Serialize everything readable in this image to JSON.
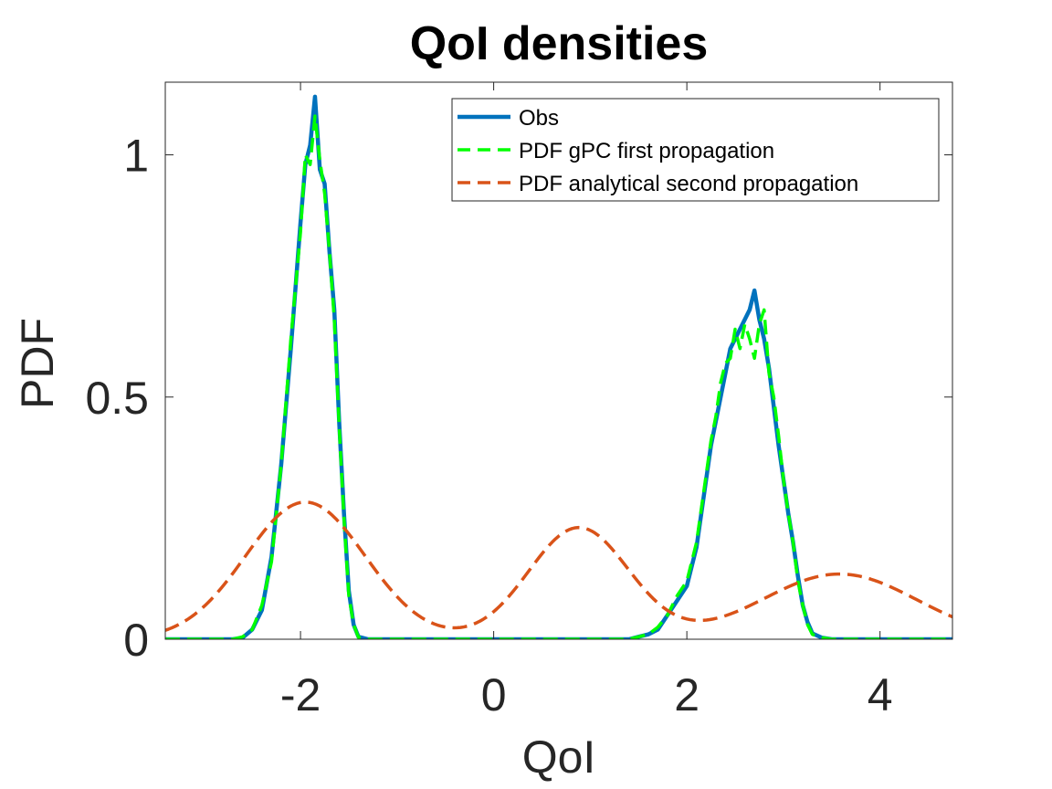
{
  "chart_data": {
    "type": "line",
    "title": "QoI densities",
    "xlabel": "QoI",
    "ylabel": "PDF",
    "xlim": [
      -3.4,
      4.75
    ],
    "ylim": [
      0,
      1.15
    ],
    "xticks": [
      -2,
      0,
      2,
      4
    ],
    "xtick_labels": [
      "-2",
      "0",
      "2",
      "4"
    ],
    "yticks": [
      0,
      0.5,
      1
    ],
    "ytick_labels": [
      "0",
      "0.5",
      "1"
    ],
    "grid": false,
    "legend_position": "top-right",
    "series": [
      {
        "name": "Obs",
        "style": "solid",
        "color": "#0072BD",
        "points": [
          [
            -3.4,
            0
          ],
          [
            -2.7,
            0
          ],
          [
            -2.6,
            0.003
          ],
          [
            -2.5,
            0.02
          ],
          [
            -2.4,
            0.06
          ],
          [
            -2.3,
            0.17
          ],
          [
            -2.2,
            0.36
          ],
          [
            -2.1,
            0.6
          ],
          [
            -2.0,
            0.86
          ],
          [
            -1.95,
            0.98
          ],
          [
            -1.9,
            1.02
          ],
          [
            -1.85,
            1.12
          ],
          [
            -1.8,
            0.97
          ],
          [
            -1.75,
            0.94
          ],
          [
            -1.7,
            0.8
          ],
          [
            -1.65,
            0.68
          ],
          [
            -1.6,
            0.45
          ],
          [
            -1.55,
            0.26
          ],
          [
            -1.5,
            0.1
          ],
          [
            -1.45,
            0.03
          ],
          [
            -1.4,
            0.005
          ],
          [
            -1.3,
            0
          ],
          [
            1.4,
            0
          ],
          [
            1.5,
            0.005
          ],
          [
            1.6,
            0.01
          ],
          [
            1.7,
            0.02
          ],
          [
            1.8,
            0.05
          ],
          [
            1.9,
            0.08
          ],
          [
            2.0,
            0.11
          ],
          [
            2.1,
            0.19
          ],
          [
            2.15,
            0.26
          ],
          [
            2.2,
            0.33
          ],
          [
            2.25,
            0.4
          ],
          [
            2.3,
            0.45
          ],
          [
            2.35,
            0.5
          ],
          [
            2.4,
            0.55
          ],
          [
            2.45,
            0.6
          ],
          [
            2.5,
            0.62
          ],
          [
            2.55,
            0.64
          ],
          [
            2.6,
            0.66
          ],
          [
            2.65,
            0.68
          ],
          [
            2.7,
            0.72
          ],
          [
            2.75,
            0.66
          ],
          [
            2.8,
            0.62
          ],
          [
            2.85,
            0.56
          ],
          [
            2.9,
            0.48
          ],
          [
            2.95,
            0.4
          ],
          [
            3.0,
            0.33
          ],
          [
            3.05,
            0.26
          ],
          [
            3.1,
            0.2
          ],
          [
            3.15,
            0.13
          ],
          [
            3.2,
            0.07
          ],
          [
            3.25,
            0.035
          ],
          [
            3.3,
            0.012
          ],
          [
            3.4,
            0.003
          ],
          [
            3.5,
            0
          ],
          [
            4.75,
            0
          ]
        ]
      },
      {
        "name": "PDF gPC first propagation",
        "style": "dashed",
        "color": "#00FF00",
        "points": [
          [
            -3.4,
            0
          ],
          [
            -2.7,
            0
          ],
          [
            -2.6,
            0.005
          ],
          [
            -2.5,
            0.02
          ],
          [
            -2.4,
            0.07
          ],
          [
            -2.3,
            0.16
          ],
          [
            -2.2,
            0.36
          ],
          [
            -2.1,
            0.62
          ],
          [
            -2.0,
            0.84
          ],
          [
            -1.95,
            1.0
          ],
          [
            -1.9,
            0.98
          ],
          [
            -1.85,
            1.08
          ],
          [
            -1.8,
            0.99
          ],
          [
            -1.75,
            0.92
          ],
          [
            -1.7,
            0.8
          ],
          [
            -1.65,
            0.66
          ],
          [
            -1.6,
            0.44
          ],
          [
            -1.55,
            0.25
          ],
          [
            -1.5,
            0.09
          ],
          [
            -1.45,
            0.03
          ],
          [
            -1.4,
            0.004
          ],
          [
            -1.3,
            0
          ],
          [
            1.4,
            0
          ],
          [
            1.5,
            0.005
          ],
          [
            1.6,
            0.01
          ],
          [
            1.7,
            0.025
          ],
          [
            1.8,
            0.05
          ],
          [
            1.9,
            0.09
          ],
          [
            2.0,
            0.12
          ],
          [
            2.1,
            0.2
          ],
          [
            2.15,
            0.27
          ],
          [
            2.2,
            0.34
          ],
          [
            2.25,
            0.41
          ],
          [
            2.3,
            0.46
          ],
          [
            2.35,
            0.53
          ],
          [
            2.4,
            0.57
          ],
          [
            2.45,
            0.58
          ],
          [
            2.5,
            0.64
          ],
          [
            2.55,
            0.6
          ],
          [
            2.6,
            0.65
          ],
          [
            2.65,
            0.62
          ],
          [
            2.7,
            0.58
          ],
          [
            2.75,
            0.65
          ],
          [
            2.8,
            0.68
          ],
          [
            2.85,
            0.55
          ],
          [
            2.9,
            0.5
          ],
          [
            2.95,
            0.42
          ],
          [
            3.0,
            0.33
          ],
          [
            3.05,
            0.26
          ],
          [
            3.1,
            0.2
          ],
          [
            3.15,
            0.12
          ],
          [
            3.2,
            0.07
          ],
          [
            3.25,
            0.03
          ],
          [
            3.3,
            0.01
          ],
          [
            3.4,
            0.003
          ],
          [
            3.5,
            0
          ],
          [
            4.75,
            0
          ]
        ]
      },
      {
        "name": "PDF analytical second propagation",
        "style": "dashed",
        "color": "#D95319",
        "components": [
          {
            "weight": 0.44,
            "mean": -1.95,
            "sd": 0.62
          },
          {
            "weight": 0.3,
            "mean": 0.88,
            "sd": 0.52
          },
          {
            "weight": 0.27,
            "mean": 3.58,
            "sd": 0.8
          }
        ]
      }
    ]
  }
}
